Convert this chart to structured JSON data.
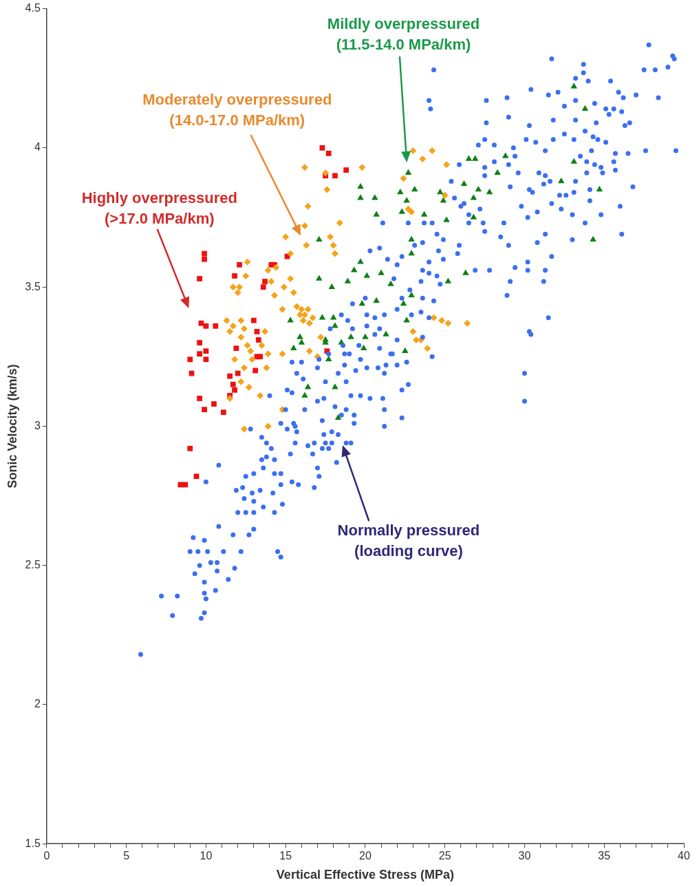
{
  "chart_data": {
    "type": "scatter",
    "xlabel": "Vertical Effective Stress (MPa)",
    "ylabel": "Sonic Velocity (km/s)",
    "xlim": [
      0,
      40
    ],
    "ylim": [
      1.5,
      4.5
    ],
    "xticks": [
      0,
      {
        "value": 1,
        "label": null
      },
      {
        "value": 2,
        "label": null
      },
      {
        "value": 3,
        "label": null
      },
      {
        "value": 4,
        "label": null
      },
      5,
      {
        "value": 6,
        "label": null
      },
      {
        "value": 7,
        "label": null
      },
      {
        "value": 8,
        "label": null
      },
      {
        "value": 9,
        "label": null
      },
      10,
      {
        "value": 11,
        "label": null
      },
      {
        "value": 12,
        "label": null
      },
      {
        "value": 13,
        "label": null
      },
      {
        "value": 14,
        "label": null
      },
      15,
      {
        "value": 16,
        "label": null
      },
      {
        "value": 17,
        "label": null
      },
      {
        "value": 18,
        "label": null
      },
      {
        "value": 19,
        "label": null
      },
      20,
      {
        "value": 21,
        "label": null
      },
      {
        "value": 22,
        "label": null
      },
      {
        "value": 23,
        "label": null
      },
      {
        "value": 24,
        "label": null
      },
      25,
      {
        "value": 26,
        "label": null
      },
      {
        "value": 27,
        "label": null
      },
      {
        "value": 28,
        "label": null
      },
      {
        "value": 29,
        "label": null
      },
      30,
      {
        "value": 31,
        "label": null
      },
      {
        "value": 32,
        "label": null
      },
      {
        "value": 33,
        "label": null
      },
      {
        "value": 34,
        "label": null
      },
      35,
      {
        "value": 36,
        "label": null
      },
      {
        "value": 37,
        "label": null
      },
      {
        "value": 38,
        "label": null
      },
      {
        "value": 39,
        "label": null
      },
      40
    ],
    "yticks": [
      1.5,
      2,
      2.5,
      3,
      3.5,
      4,
      4.5
    ],
    "series": [
      {
        "color": "#3b6ff0",
        "marker": "circle",
        "x": [
          5.9,
          9.7,
          9.9,
          7.9,
          7.2,
          8.2,
          10.0,
          9.9,
          10.6,
          11.4,
          9.9,
          9.3,
          9.6,
          10.3,
          10.7,
          10.7,
          11.8,
          9.0,
          9.5,
          10.1,
          11.1,
          12.2,
          9.2,
          9.9,
          10.8,
          11.7,
          12.7,
          13.0,
          14.5,
          14.7,
          12.0,
          12.5,
          13.0,
          13.6,
          14.3,
          12.4,
          13.0,
          14.8,
          11.9,
          12.3,
          12.9,
          13.4,
          14.2,
          10.0,
          10.8,
          12.5,
          13.0,
          13.6,
          13.5,
          13.8,
          14.1,
          13.8,
          13.5,
          14.3,
          14.7,
          14.7,
          15.4,
          15.8,
          14.3,
          12.8,
          14.7,
          15.1,
          15.6,
          15.7,
          15.3,
          15.6,
          16.4,
          16.8,
          16.7,
          17.3,
          17.7,
          17.5,
          17.9,
          18.8,
          19.1,
          18.2,
          17.0,
          17.1,
          16.8,
          17.4,
          17.9,
          18.3,
          19.3,
          21.2,
          22.3,
          21.2,
          21.1,
          19.3,
          18.5,
          17.3,
          16.2,
          15.5,
          15.0,
          15.4,
          14.0,
          15.1,
          16.1,
          15.7,
          15.4,
          16.0,
          17.0,
          17.0,
          17.4,
          18.1,
          18.8,
          19.1,
          19.7,
          20.3,
          18.8,
          18.3,
          17.5,
          18.7,
          19.4,
          20.1,
          21.2,
          22.3,
          22.7,
          21.3,
          22.0,
          22.6,
          20.8,
          17.1,
          17.7,
          19.0,
          19.7,
          21.7,
          24.3,
          24.0,
          24.1,
          31.7,
          37.8,
          39.3,
          39.4,
          39.0,
          38.2,
          37.5,
          33.7,
          33.7,
          30.4,
          31.5,
          32.1,
          33.2,
          34.0,
          35.4,
          35.9,
          36.2,
          37.0,
          38.4,
          27.6,
          28.9,
          29.0,
          27.6,
          30.3,
          31.8,
          32.5,
          33.2,
          34.4,
          35.1,
          35.6,
          35.3,
          36.1,
          36.6,
          36.3,
          33.2,
          34.5,
          33.8,
          32.5,
          33.1,
          31.8,
          34.3,
          34.6,
          35.1,
          35.7,
          36.5,
          37.6,
          39.5,
          30.1,
          30.7,
          31.3,
          27.5,
          27.1,
          28.1,
          29.3,
          29.4,
          28.1,
          29.0,
          29.6,
          27.5,
          27.5,
          25.9,
          25.4,
          30.9,
          31.3,
          31.2,
          31.6,
          29.1,
          33.2,
          33.5,
          33.9,
          34.2,
          34.4,
          34.8,
          35.6,
          35.7,
          33.9,
          34.9,
          34.1,
          36.8,
          32.2,
          32.6,
          33.1,
          30.3,
          30.5,
          29.8,
          30.8,
          30.2,
          31.7,
          32.3,
          33.0,
          33.8,
          34.1,
          34.8,
          36.0,
          36.1,
          33.0,
          31.3,
          30.8,
          31.7,
          30.2,
          30.2,
          31.3,
          31.2,
          29.4,
          29.1,
          28.9,
          27.8,
          26.9,
          31.5,
          30.4,
          28.5,
          29.0,
          28.7,
          27.5,
          27.4,
          26.5,
          26.0,
          25.6,
          26.2,
          27.2,
          26.5,
          25.9,
          25.8,
          24.9,
          24.6,
          24.9,
          24.0,
          24.5,
          23.6,
          23.1,
          23.7,
          24.2,
          22.7,
          21.1,
          20.9,
          20.3,
          21.4,
          22.0,
          22.3,
          23.6,
          24.0,
          23.5,
          24.5,
          24.7,
          22.8,
          21.8,
          22.3,
          23.6,
          24.3,
          24.0,
          23.5,
          22.9,
          22.0,
          21.2,
          20.6,
          20.1,
          20.0,
          19.2,
          18.9,
          18.5,
          19.2,
          20.1,
          20.6,
          20.9,
          22.0,
          23.6,
          24.2,
          18.6,
          17.8,
          18.7,
          19.6,
          20.9,
          21.6,
          30.0,
          30.0,
          30.3
        ],
        "values": [
          2.18,
          2.31,
          2.33,
          2.32,
          2.39,
          2.39,
          2.38,
          2.4,
          2.41,
          2.45,
          2.44,
          2.47,
          2.5,
          2.51,
          2.51,
          2.48,
          2.49,
          2.55,
          2.55,
          2.55,
          2.55,
          2.55,
          2.6,
          2.59,
          2.64,
          2.61,
          2.61,
          2.63,
          2.55,
          2.53,
          2.69,
          2.69,
          2.69,
          2.71,
          2.69,
          2.74,
          2.73,
          2.72,
          2.77,
          2.78,
          2.76,
          2.77,
          2.76,
          2.8,
          2.86,
          2.82,
          2.83,
          2.85,
          2.88,
          2.89,
          2.92,
          2.94,
          2.96,
          2.83,
          2.83,
          2.79,
          2.8,
          2.79,
          2.88,
          2.99,
          3.01,
          2.99,
          3.0,
          2.98,
          2.9,
          2.94,
          2.93,
          2.94,
          2.9,
          2.92,
          2.92,
          2.94,
          2.94,
          2.94,
          2.94,
          2.87,
          2.85,
          2.82,
          2.78,
          2.97,
          2.98,
          2.97,
          3.01,
          3.0,
          3.03,
          3.06,
          3.1,
          3.04,
          3.04,
          3.02,
          3.06,
          3.01,
          3.06,
          3.12,
          3.11,
          3.13,
          3.17,
          3.19,
          3.23,
          3.23,
          3.21,
          3.09,
          3.1,
          3.07,
          3.06,
          3.11,
          3.11,
          3.1,
          3.16,
          3.19,
          3.16,
          3.22,
          3.2,
          3.21,
          3.19,
          3.13,
          3.15,
          3.22,
          3.22,
          3.23,
          3.21,
          3.24,
          3.26,
          3.26,
          3.24,
          3.26,
          4.28,
          4.17,
          4.14,
          4.32,
          4.37,
          4.33,
          4.32,
          4.29,
          4.28,
          4.28,
          4.3,
          4.27,
          4.21,
          4.19,
          4.2,
          4.25,
          4.24,
          4.24,
          4.2,
          4.18,
          4.19,
          4.18,
          4.17,
          4.18,
          4.11,
          4.09,
          4.08,
          4.1,
          4.15,
          4.17,
          4.16,
          4.14,
          4.14,
          4.12,
          4.13,
          4.09,
          4.08,
          4.1,
          4.09,
          4.06,
          4.05,
          4.03,
          4.03,
          4.04,
          4.03,
          4.02,
          3.98,
          3.98,
          3.99,
          3.99,
          4.03,
          4.02,
          3.99,
          4.03,
          4.01,
          4.01,
          4.0,
          3.97,
          3.95,
          3.94,
          3.91,
          3.93,
          3.9,
          3.94,
          3.88,
          3.91,
          3.9,
          3.87,
          3.88,
          3.86,
          3.88,
          3.97,
          3.95,
          3.99,
          3.94,
          3.93,
          3.95,
          3.92,
          3.91,
          3.91,
          3.85,
          3.86,
          3.83,
          3.83,
          3.84,
          3.85,
          3.84,
          3.79,
          3.77,
          3.75,
          3.8,
          3.78,
          3.76,
          3.73,
          3.81,
          3.76,
          3.79,
          3.69,
          3.67,
          3.69,
          3.66,
          3.61,
          3.59,
          3.56,
          3.56,
          3.52,
          3.57,
          3.52,
          3.47,
          3.56,
          3.56,
          3.39,
          3.33,
          3.68,
          3.65,
          3.73,
          3.7,
          3.73,
          3.73,
          3.79,
          3.82,
          3.8,
          3.78,
          3.76,
          3.65,
          3.62,
          3.67,
          3.63,
          3.6,
          3.59,
          3.69,
          3.66,
          3.65,
          3.73,
          3.73,
          3.73,
          3.73,
          3.64,
          3.63,
          3.6,
          3.58,
          3.61,
          3.56,
          3.55,
          3.52,
          3.54,
          3.51,
          3.49,
          3.53,
          3.46,
          3.46,
          3.45,
          3.39,
          3.41,
          3.4,
          3.42,
          3.4,
          3.39,
          3.4,
          3.46,
          3.44,
          3.38,
          3.4,
          3.35,
          3.36,
          3.33,
          3.35,
          3.31,
          3.32,
          3.25,
          3.29,
          3.35,
          3.26,
          3.29,
          3.28,
          3.26,
          3.09,
          3.19,
          3.34
        ]
      },
      {
        "color": "#0f7f16",
        "marker": "triangle",
        "x": [
          22.7,
          23.1,
          22.2,
          22.6,
          19.7,
          19.7,
          20.6,
          20.7,
          22.3,
          23.7,
          24.7,
          24.9,
          25.1,
          26.2,
          26.5,
          26.9,
          27.1,
          26.8,
          27.8,
          26.8,
          28.8,
          28.3,
          33.1,
          33.8,
          33.1,
          32.3,
          34.7,
          34.3,
          17.1,
          22.9,
          22.9,
          19.7,
          19.3,
          20.1,
          21.0,
          18.9,
          21.6,
          22.9,
          25.2,
          26.3,
          22.4,
          20.7,
          19.8,
          17.9,
          17.1,
          18.0,
          17.3,
          18.1,
          22.6,
          21.3,
          20.0,
          19.1,
          18.5,
          17.5,
          22.5,
          19.9,
          15.9,
          15.3,
          16.0,
          15.5,
          16.4,
          16.2,
          18.1,
          18.3,
          17.7,
          17.5
        ],
        "values": [
          3.91,
          3.85,
          3.84,
          3.81,
          3.86,
          3.82,
          3.82,
          3.76,
          3.77,
          3.76,
          3.84,
          3.81,
          3.74,
          3.87,
          3.96,
          3.96,
          3.85,
          3.82,
          3.84,
          3.75,
          3.97,
          3.91,
          4.22,
          4.14,
          3.95,
          3.88,
          3.85,
          3.67,
          3.67,
          3.67,
          3.62,
          3.59,
          3.56,
          3.54,
          3.55,
          3.52,
          3.51,
          3.47,
          3.52,
          3.55,
          3.44,
          3.45,
          3.44,
          3.5,
          3.53,
          3.39,
          3.39,
          3.36,
          3.38,
          3.33,
          3.32,
          3.32,
          3.3,
          3.3,
          3.27,
          3.28,
          3.32,
          3.38,
          3.3,
          3.28,
          3.14,
          3.11,
          3.14,
          3.03,
          3.24,
          3.31
        ]
      },
      {
        "color": "#f5a31c",
        "marker": "diamond",
        "x": [
          17.5,
          17.6,
          19.8,
          22.4,
          23.0,
          24.2,
          25.1,
          23.6,
          16.2,
          16.4,
          18.4,
          16.2,
          16.3,
          17.8,
          18.0,
          18.1,
          15.3,
          14.4,
          14.1,
          12.6,
          12.5,
          12.1,
          11.7,
          12.0,
          14.3,
          14.9,
          14.8,
          15.3,
          15.5,
          15.7,
          16.0,
          16.2,
          16.4,
          16.7,
          16.1,
          15.9,
          16.5,
          11.3,
          11.5,
          11.7,
          12.2,
          12.2,
          12.4,
          12.6,
          12.8,
          11.8,
          12.4,
          12.9,
          13.5,
          13.7,
          13.8,
          13.9,
          12.2,
          11.5,
          12.7,
          13.4,
          12.4,
          13.9,
          14.8,
          16.5,
          17.0,
          17.2,
          14.8,
          24.3,
          24.8,
          25.2,
          26.4,
          23.2,
          23.5,
          23.9,
          23.0,
          25.0,
          22.7,
          22.9,
          15.0,
          13.9
        ],
        "values": [
          3.91,
          3.85,
          3.93,
          3.89,
          3.99,
          3.99,
          3.94,
          3.96,
          3.93,
          3.79,
          3.73,
          3.72,
          3.65,
          3.68,
          3.65,
          3.62,
          3.62,
          3.57,
          3.52,
          3.59,
          3.54,
          3.5,
          3.5,
          3.48,
          3.47,
          3.5,
          3.42,
          3.53,
          3.48,
          3.43,
          3.42,
          3.4,
          3.42,
          3.39,
          3.38,
          3.4,
          3.37,
          3.38,
          3.34,
          3.36,
          3.38,
          3.32,
          3.35,
          3.29,
          3.27,
          3.24,
          3.21,
          3.24,
          3.29,
          3.34,
          3.21,
          3.26,
          3.16,
          3.1,
          3.14,
          3.11,
          2.99,
          3.0,
          3.06,
          3.27,
          3.25,
          3.32,
          3.26,
          3.39,
          3.38,
          3.37,
          3.37,
          3.31,
          3.31,
          3.28,
          3.34,
          3.83,
          3.78,
          3.77,
          3.68,
          3.56
        ]
      },
      {
        "color": "#ee1111",
        "marker": "square",
        "x": [
          8.4,
          8.7,
          9.0,
          9.4,
          9.0,
          9.1,
          9.6,
          9.6,
          9.7,
          9.6,
          9.9,
          10.0,
          10.0,
          10.0,
          10.5,
          10.6,
          9.6,
          9.9,
          9.9,
          11.1,
          11.5,
          11.5,
          11.8,
          11.7,
          12.0,
          11.9,
          11.8,
          12.1,
          13.0,
          13.2,
          13.3,
          13.1,
          13.2,
          13.4,
          13.6,
          13.7,
          14.1,
          14.3,
          15.1,
          17.3,
          17.7,
          17.5,
          18.1,
          18.8,
          17.6
        ],
        "values": [
          2.79,
          2.79,
          2.92,
          2.82,
          3.24,
          3.19,
          3.26,
          3.3,
          3.37,
          3.1,
          3.06,
          3.36,
          3.24,
          3.27,
          3.08,
          3.36,
          3.53,
          3.62,
          3.6,
          3.05,
          3.11,
          3.18,
          3.13,
          3.15,
          3.19,
          3.28,
          3.54,
          3.58,
          3.38,
          3.34,
          3.31,
          3.2,
          3.25,
          3.25,
          3.5,
          3.52,
          3.58,
          3.58,
          3.61,
          4.0,
          3.98,
          3.9,
          3.9,
          3.92,
          3.27
        ]
      }
    ],
    "annotations": [
      "Normally pressured\n(loading curve)",
      "Mildly overpressured\n(11.5-14.0 MPa/km)",
      "Moderately overpressured\n(14.0-17.0 MPa/km)",
      "Highly overpressured\n(>17.0 MPa/km)"
    ]
  }
}
